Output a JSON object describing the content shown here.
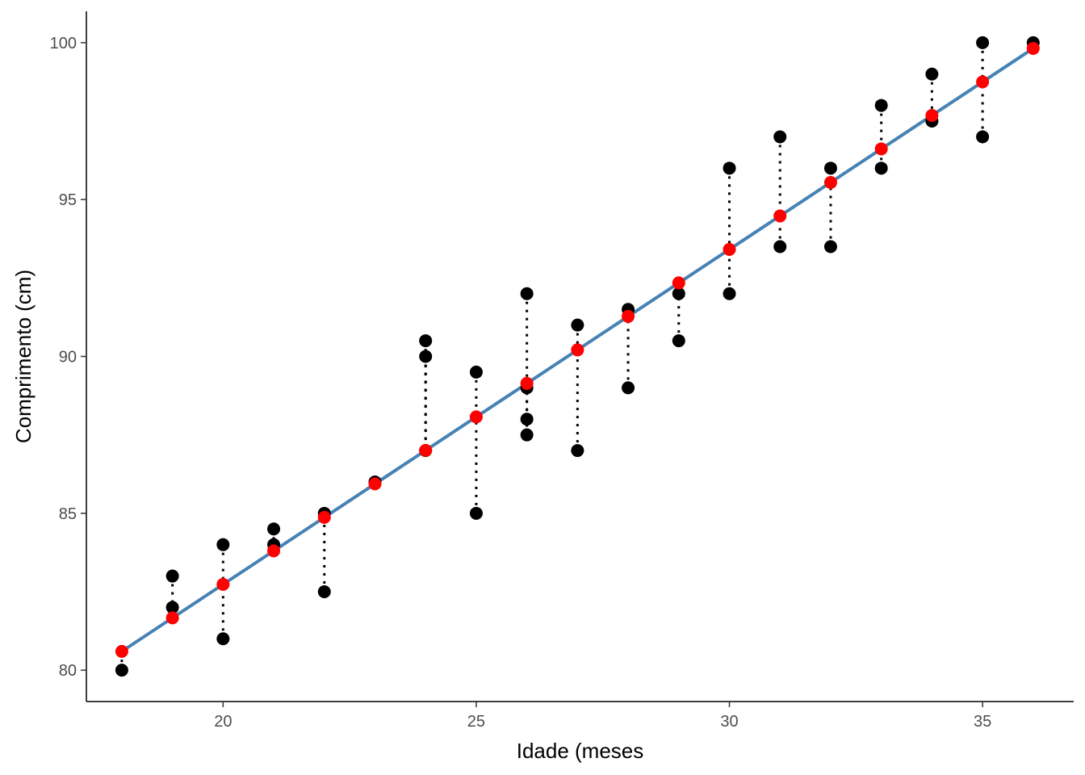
{
  "chart_data": {
    "type": "scatter",
    "title": "",
    "xlabel": "Idade (meses",
    "ylabel": "Comprimento (cm)",
    "xlim": [
      17.3,
      36.8
    ],
    "ylim": [
      79.0,
      101.0
    ],
    "x_ticks": [
      20,
      25,
      30,
      35
    ],
    "y_ticks": [
      80,
      85,
      90,
      95,
      100
    ],
    "grid": false,
    "legend": "none",
    "colors": {
      "observed": "#000000",
      "fitted": "#ff0000",
      "fit_line": "#4682b4",
      "residual": "#000000",
      "axis": "#000000",
      "tick_label": "#4d4d4d"
    },
    "regression": {
      "intercept": 61.38,
      "slope": 1.0677,
      "x_range": [
        18,
        36
      ]
    },
    "observed": [
      {
        "x": 18,
        "y": 80
      },
      {
        "x": 19,
        "y": 83
      },
      {
        "x": 19,
        "y": 82
      },
      {
        "x": 20,
        "y": 84
      },
      {
        "x": 20,
        "y": 81
      },
      {
        "x": 21,
        "y": 84.5
      },
      {
        "x": 21,
        "y": 84
      },
      {
        "x": 22,
        "y": 85
      },
      {
        "x": 22,
        "y": 82.5
      },
      {
        "x": 23,
        "y": 86
      },
      {
        "x": 24,
        "y": 90.5
      },
      {
        "x": 24,
        "y": 90
      },
      {
        "x": 24,
        "y": 87
      },
      {
        "x": 25,
        "y": 89.5
      },
      {
        "x": 25,
        "y": 85
      },
      {
        "x": 26,
        "y": 92
      },
      {
        "x": 26,
        "y": 89
      },
      {
        "x": 26,
        "y": 88
      },
      {
        "x": 26,
        "y": 87.5
      },
      {
        "x": 27,
        "y": 91
      },
      {
        "x": 27,
        "y": 87
      },
      {
        "x": 28,
        "y": 91.5
      },
      {
        "x": 28,
        "y": 89
      },
      {
        "x": 29,
        "y": 92
      },
      {
        "x": 29,
        "y": 90.5
      },
      {
        "x": 30,
        "y": 96
      },
      {
        "x": 30,
        "y": 92
      },
      {
        "x": 31,
        "y": 97
      },
      {
        "x": 31,
        "y": 93.5
      },
      {
        "x": 32,
        "y": 96
      },
      {
        "x": 32,
        "y": 93.5
      },
      {
        "x": 33,
        "y": 98
      },
      {
        "x": 33,
        "y": 96
      },
      {
        "x": 34,
        "y": 99
      },
      {
        "x": 34,
        "y": 97.5
      },
      {
        "x": 35,
        "y": 100
      },
      {
        "x": 35,
        "y": 97
      },
      {
        "x": 36,
        "y": 100
      }
    ]
  }
}
